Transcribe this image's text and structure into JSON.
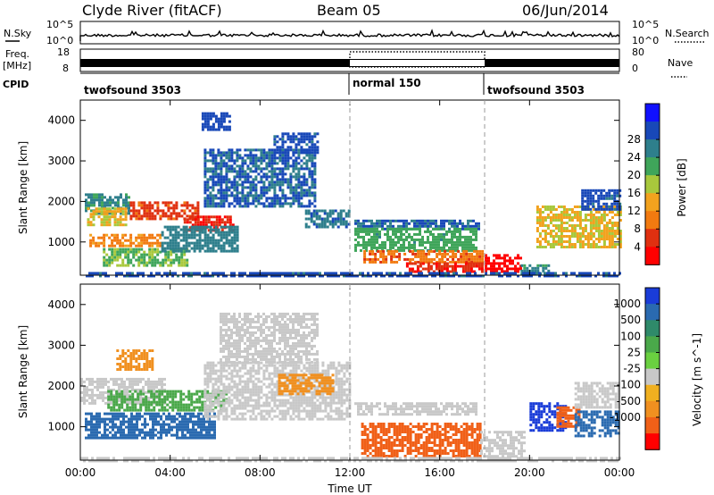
{
  "header": {
    "station": "Clyde River (fitACF)",
    "beam": "Beam 05",
    "date": "06/Jun/2014"
  },
  "strips": {
    "nsky_label": "N.Sky",
    "nsky_ticks": [
      "10^5",
      "10^0"
    ],
    "nsearch_label": "N.Search",
    "nsearch_ticks": [
      "10^5",
      "10^0"
    ],
    "freq_label": "Freq.",
    "freq_unit": "[MHz]",
    "freq_ticks": [
      "18",
      "8"
    ],
    "nave_label": "Nave",
    "nave_ticks": [
      "80",
      "0"
    ],
    "cpid_label": "CPID",
    "cpid_segments": [
      {
        "label": "twofsound 3503",
        "start_h": 0,
        "end_h": 12
      },
      {
        "label": "normal 150",
        "start_h": 12,
        "end_h": 18
      },
      {
        "label": "twofsound 3503",
        "start_h": 18,
        "end_h": 24
      }
    ]
  },
  "chart_data": [
    {
      "type": "heatmap",
      "title": "",
      "xlabel": "",
      "ylabel": "Slant Range [km]",
      "x_ticks": [
        "00:00",
        "04:00",
        "08:00",
        "12:00",
        "16:00",
        "20:00",
        "00:00"
      ],
      "xlim_hours": [
        0,
        24
      ],
      "y_ticks": [
        1000,
        2000,
        3000,
        4000
      ],
      "ylim": [
        180,
        4500
      ],
      "colorbar": {
        "label": "Power [dB]",
        "ticks": [
          "4",
          "8",
          "12",
          "16",
          "20",
          "24",
          "28"
        ],
        "colors": [
          "#1010ff",
          "#1848b8",
          "#2e7f8c",
          "#3fa55a",
          "#a8c83c",
          "#f2a21e",
          "#f27a10",
          "#e03010",
          "#ff0000"
        ]
      },
      "regions": [
        {
          "t0": 0.2,
          "t1": 2.2,
          "r0": 1700,
          "r1": 2200,
          "value": 10
        },
        {
          "t0": 0.3,
          "t1": 2.0,
          "r0": 1400,
          "r1": 1850,
          "value": 18
        },
        {
          "t0": 2.2,
          "t1": 5.2,
          "r0": 1550,
          "r1": 2000,
          "value": 26
        },
        {
          "t0": 4.6,
          "t1": 6.8,
          "r0": 1300,
          "r1": 1650,
          "value": 28
        },
        {
          "t0": 0.4,
          "t1": 3.6,
          "r0": 900,
          "r1": 1200,
          "value": 22
        },
        {
          "t0": 1.0,
          "t1": 4.8,
          "r0": 400,
          "r1": 850,
          "value": 14
        },
        {
          "t0": 3.6,
          "t1": 7.0,
          "r0": 800,
          "r1": 1400,
          "value": 9
        },
        {
          "t0": 5.5,
          "t1": 10.5,
          "r0": 1900,
          "r1": 3300,
          "value": 7
        },
        {
          "t0": 8.6,
          "t1": 10.6,
          "r0": 3200,
          "r1": 3700,
          "value": 6
        },
        {
          "t0": 5.4,
          "t1": 6.6,
          "r0": 3800,
          "r1": 4200,
          "value": 5
        },
        {
          "t0": 10.0,
          "t1": 12.0,
          "r0": 1350,
          "r1": 1800,
          "value": 8
        },
        {
          "t0": 12.2,
          "t1": 17.8,
          "r0": 1350,
          "r1": 1550,
          "value": 7
        },
        {
          "t0": 12.2,
          "t1": 17.6,
          "r0": 800,
          "r1": 1350,
          "value": 12
        },
        {
          "t0": 12.6,
          "t1": 17.9,
          "r0": 500,
          "r1": 800,
          "value": 24
        },
        {
          "t0": 14.5,
          "t1": 17.9,
          "r0": 250,
          "r1": 500,
          "value": 28
        },
        {
          "t0": 18.0,
          "t1": 19.6,
          "r0": 250,
          "r1": 700,
          "value": 30
        },
        {
          "t0": 19.6,
          "t1": 20.8,
          "r0": 200,
          "r1": 450,
          "value": 10
        },
        {
          "t0": 20.3,
          "t1": 24.0,
          "r0": 900,
          "r1": 1900,
          "value": 18
        },
        {
          "t0": 22.3,
          "t1": 24.0,
          "r0": 1800,
          "r1": 2300,
          "value": 6
        },
        {
          "t0": 0.0,
          "t1": 24.0,
          "r0": 180,
          "r1": 260,
          "value": 6
        }
      ]
    },
    {
      "type": "heatmap",
      "title": "",
      "xlabel": "Time UT",
      "ylabel": "Slant Range [km]",
      "x_ticks": [
        "00:00",
        "04:00",
        "08:00",
        "12:00",
        "16:00",
        "20:00",
        "00:00"
      ],
      "xlim_hours": [
        0,
        24
      ],
      "y_ticks": [
        1000,
        2000,
        3000,
        4000
      ],
      "ylim": [
        180,
        4500
      ],
      "colorbar": {
        "label": "Velocity [m s^-1]",
        "ticks": [
          "1000",
          "500",
          "100",
          "25",
          "-25",
          "-100",
          "-500",
          "-1000"
        ],
        "colors": [
          "#1a3cd8",
          "#2a6ab0",
          "#2f8a6a",
          "#4aa84a",
          "#6ad040",
          "#c8c8c8",
          "#f0b020",
          "#f09020",
          "#f06018",
          "#ff0000"
        ]
      },
      "regions": [
        {
          "t0": 0.0,
          "t1": 3.8,
          "r0": 1600,
          "r1": 2200,
          "value": 0
        },
        {
          "t0": 1.2,
          "t1": 6.5,
          "r0": 1400,
          "r1": 1900,
          "value": 60
        },
        {
          "t0": 0.2,
          "t1": 6.0,
          "r0": 700,
          "r1": 1350,
          "value": 300
        },
        {
          "t0": 5.5,
          "t1": 12.0,
          "r0": 1200,
          "r1": 2600,
          "value": 0
        },
        {
          "t0": 6.2,
          "t1": 10.5,
          "r0": 2600,
          "r1": 3800,
          "value": 0
        },
        {
          "t0": 1.6,
          "t1": 3.2,
          "r0": 2400,
          "r1": 2900,
          "value": -100
        },
        {
          "t0": 8.8,
          "t1": 11.2,
          "r0": 1800,
          "r1": 2300,
          "value": -150
        },
        {
          "t0": 12.2,
          "t1": 17.6,
          "r0": 1300,
          "r1": 1600,
          "value": 0
        },
        {
          "t0": 12.5,
          "t1": 17.8,
          "r0": 300,
          "r1": 1100,
          "value": -300
        },
        {
          "t0": 17.8,
          "t1": 19.8,
          "r0": 250,
          "r1": 900,
          "value": 0
        },
        {
          "t0": 20.0,
          "t1": 21.6,
          "r0": 900,
          "r1": 1600,
          "value": 700
        },
        {
          "t0": 21.2,
          "t1": 22.2,
          "r0": 1000,
          "r1": 1500,
          "value": -400
        },
        {
          "t0": 22.0,
          "t1": 24.0,
          "r0": 800,
          "r1": 1400,
          "value": 300
        },
        {
          "t0": 22.0,
          "t1": 24.0,
          "r0": 1500,
          "r1": 2100,
          "value": 0
        },
        {
          "t0": 0.0,
          "t1": 24.0,
          "r0": 180,
          "r1": 260,
          "value": 0
        }
      ]
    }
  ]
}
